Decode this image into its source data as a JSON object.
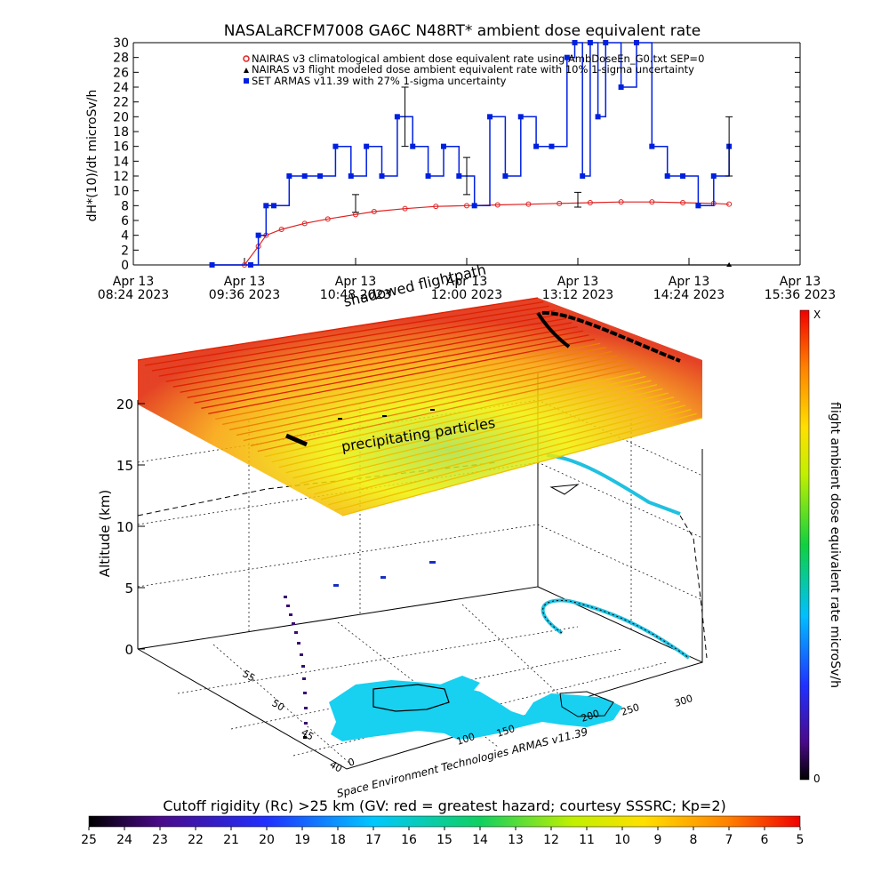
{
  "chart_data": [
    {
      "type": "line",
      "title": "NASALaRCFM7008  GA6C N48RT* ambient dose equivalent rate",
      "ylabel": "dH*(10)/dt microSv/h",
      "ylim": [
        0,
        30
      ],
      "yticks": [
        "0",
        "2",
        "4",
        "6",
        "8",
        "10",
        "12",
        "14",
        "16",
        "18",
        "20",
        "22",
        "24",
        "26",
        "28",
        "30"
      ],
      "xticks": [
        {
          "date": "Apr 13",
          "time": "08:24 2023"
        },
        {
          "date": "Apr 13",
          "time": "09:36 2023"
        },
        {
          "date": "Apr 13",
          "time": "10:48 2023"
        },
        {
          "date": "Apr 13",
          "time": "12:00 2023"
        },
        {
          "date": "Apr 13",
          "time": "13:12 2023"
        },
        {
          "date": "Apr 13",
          "time": "14:24 2023"
        },
        {
          "date": "Apr 13",
          "time": "15:36 2023"
        }
      ],
      "grid": false,
      "legend_position": "top",
      "legend": [
        {
          "marker": "red-circle",
          "label": "NAIRAS v3 climatological ambient dose equivalent rate using AmbDoseEn_G0.txt SEP=0"
        },
        {
          "marker": "black-triangle",
          "label": "NAIRAS v3 flight modeled dose ambient equivalent rate with 10% 1-sigma uncertainty"
        },
        {
          "marker": "blue-square",
          "label": "SET ARMAS v11.39 with 27% 1-sigma uncertainty"
        }
      ],
      "series": [
        {
          "name": "NAIRAS v3 climatological ambient dose equivalent rate using AmbDoseEn_G0.txt SEP=0",
          "color": "#e02020",
          "x": [
            "09:15",
            "09:36",
            "09:45",
            "09:50",
            "10:00",
            "10:15",
            "10:30",
            "10:48",
            "11:00",
            "11:20",
            "11:40",
            "12:00",
            "12:20",
            "12:40",
            "13:00",
            "13:20",
            "13:40",
            "14:00",
            "14:20",
            "14:40",
            "14:50"
          ],
          "y": [
            0,
            0,
            2.5,
            4,
            4.8,
            5.6,
            6.2,
            6.8,
            7.2,
            7.6,
            7.9,
            8.0,
            8.1,
            8.2,
            8.3,
            8.4,
            8.5,
            8.5,
            8.4,
            8.3,
            8.2
          ]
        },
        {
          "name": "NAIRAS v3 flight modeled dose ambient equivalent rate with 10% 1-sigma uncertainty",
          "color": "#000000",
          "x": [
            "09:15",
            "14:50"
          ],
          "y": [
            0,
            0
          ]
        },
        {
          "name": "SET ARMAS v11.39 with 27% 1-sigma uncertainty",
          "color": "#0020e0",
          "x": [
            "09:15",
            "09:40",
            "09:45",
            "09:50",
            "09:55",
            "10:05",
            "10:15",
            "10:25",
            "10:35",
            "10:45",
            "10:55",
            "11:05",
            "11:15",
            "11:25",
            "11:35",
            "11:45",
            "11:55",
            "12:05",
            "12:15",
            "12:25",
            "12:35",
            "12:45",
            "12:55",
            "13:05",
            "13:10",
            "13:15",
            "13:20",
            "13:25",
            "13:30",
            "13:40",
            "13:50",
            "14:00",
            "14:10",
            "14:20",
            "14:30",
            "14:40",
            "14:50"
          ],
          "y": [
            0,
            0,
            4,
            8,
            8,
            12,
            12,
            12,
            16,
            12,
            16,
            12,
            20,
            16,
            12,
            16,
            12,
            8,
            20,
            12,
            20,
            16,
            16,
            28,
            30,
            12,
            30,
            20,
            30,
            24,
            30,
            16,
            12,
            12,
            8,
            12,
            16
          ]
        }
      ]
    },
    {
      "type": "scatter",
      "title": "",
      "zlabel": "Altitude (km)",
      "zticks": [
        "0",
        "5",
        "10",
        "15",
        "20"
      ],
      "lat_ticks": [
        "40",
        "45",
        "50",
        "55"
      ],
      "lon_ticks": [
        "0",
        "100",
        "150",
        "200",
        "250",
        "300"
      ],
      "annotations": [
        "precipitating particles",
        "shadowed flightpath"
      ],
      "colorbar_label": "flight ambient dose equivalent rate microSv/h",
      "colorbar_min": "0",
      "colorbar_max": "X",
      "credit": "Space Environment Technologies ARMAS v11.39"
    }
  ],
  "bottom_colorbar": {
    "label": "Cutoff rigidity (Rc) >25 km (GV: red = greatest hazard; courtesy SSSRC; Kp=2)",
    "ticks": [
      "25",
      "24",
      "23",
      "22",
      "21",
      "20",
      "19",
      "18",
      "17",
      "16",
      "15",
      "14",
      "13",
      "12",
      "11",
      "10",
      "9",
      "8",
      "7",
      "6",
      "5"
    ]
  },
  "colors": {
    "nairas": "#e02020",
    "armas": "#0020e0",
    "model": "#000000"
  }
}
